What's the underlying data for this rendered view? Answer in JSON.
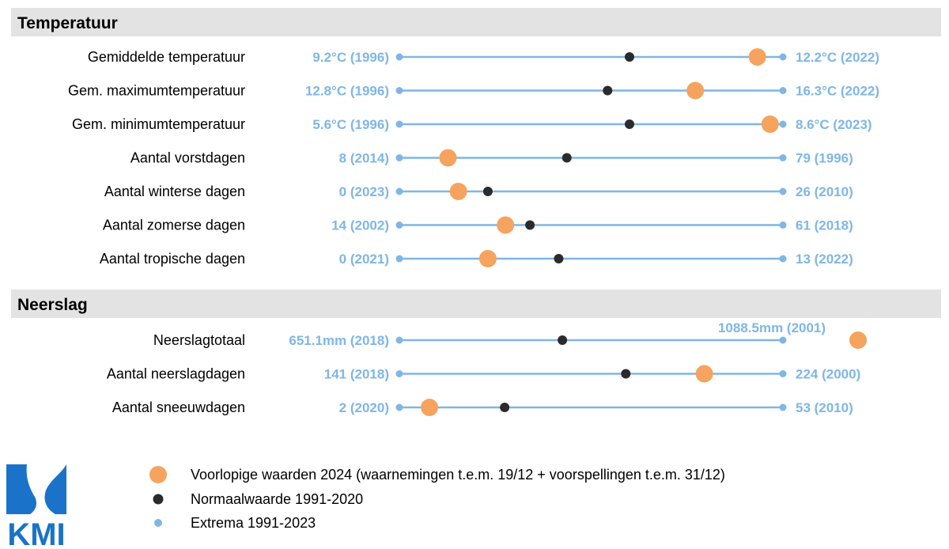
{
  "colors": {
    "extrema": "#7fb6e6",
    "normal": "#2b2b2b",
    "provisional": "#f5a35e",
    "section_bg": "#e3e3e3",
    "logo": "#1a73c9"
  },
  "chart_data": {
    "type": "dot-range",
    "sections": [
      {
        "title": "Temperatuur",
        "rows": [
          {
            "label": "Gemiddelde temperatuur",
            "min_label": "9.2°C (1996)",
            "max_label": "12.2°C (2022)",
            "min": 9.2,
            "max": 12.2,
            "normal": 11.0,
            "value_2024": 12.0
          },
          {
            "label": "Gem. maximumtemperatuur",
            "min_label": "12.8°C (1996)",
            "max_label": "16.3°C (2022)",
            "min": 12.8,
            "max": 16.3,
            "normal": 14.7,
            "value_2024": 15.5
          },
          {
            "label": "Gem. minimumtemperatuur",
            "min_label": "5.6°C (1996)",
            "max_label": "8.6°C (2023)",
            "min": 5.6,
            "max": 8.6,
            "normal": 7.4,
            "value_2024": 8.5
          },
          {
            "label": "Aantal vorstdagen",
            "min_label": "8 (2014)",
            "max_label": "79 (1996)",
            "min": 8,
            "max": 79,
            "normal": 39,
            "value_2024": 17
          },
          {
            "label": "Aantal winterse dagen",
            "min_label": "0 (2023)",
            "max_label": "26 (2010)",
            "min": 0,
            "max": 26,
            "normal": 6,
            "value_2024": 4
          },
          {
            "label": "Aantal zomerse dagen",
            "min_label": "14 (2002)",
            "max_label": "61 (2018)",
            "min": 14,
            "max": 61,
            "normal": 30,
            "value_2024": 27
          },
          {
            "label": "Aantal tropische dagen",
            "min_label": "0 (2021)",
            "max_label": "13 (2022)",
            "min": 0,
            "max": 13,
            "normal": 5.4,
            "value_2024": 3
          }
        ]
      },
      {
        "title": "Neerslag",
        "rows": [
          {
            "label": "Neerslagtotaal",
            "min_label": "651.1mm (2018)",
            "max_label": "1088.5mm (2001)",
            "min": 651.1,
            "max": 1088.5,
            "normal": 837.0,
            "value_2024": 1175.0
          },
          {
            "label": "Aantal neerslagdagen",
            "min_label": "141 (2018)",
            "max_label": "224 (2000)",
            "min": 141,
            "max": 224,
            "normal": 190,
            "value_2024": 207
          },
          {
            "label": "Aantal sneeuwdagen",
            "min_label": "2 (2020)",
            "max_label": "53 (2010)",
            "min": 2,
            "max": 53,
            "normal": 16,
            "value_2024": 6
          }
        ]
      }
    ],
    "legend": [
      {
        "key": "provisional",
        "label": "Voorlopige waarden 2024 (waarnemingen t.e.m. 19/12 + voorspellingen t.e.m. 31/12)"
      },
      {
        "key": "normal",
        "label": "Normaalwaarde 1991-2020"
      },
      {
        "key": "extrema",
        "label": "Extrema 1991-2023"
      }
    ]
  },
  "logo": {
    "text": "KMI"
  }
}
